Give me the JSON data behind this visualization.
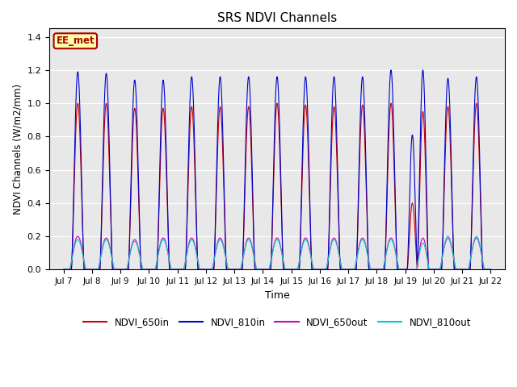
{
  "title": "SRS NDVI Channels",
  "xlabel": "Time",
  "ylabel": "NDVI Channels (W/m2/mm)",
  "ylim": [
    0,
    1.45
  ],
  "yticks": [
    0.0,
    0.2,
    0.4,
    0.6,
    0.8,
    1.0,
    1.2,
    1.4
  ],
  "x_tick_labels": [
    "Jul 7",
    "Jul 8",
    "Jul 9",
    "Jul 10",
    "Jul 11",
    "Jul 12",
    "Jul 13",
    "Jul 14",
    "Jul 15",
    "Jul 16",
    "Jul 17",
    "Jul 18",
    "Jul 19",
    "Jul 20",
    "Jul 21",
    "Jul 22"
  ],
  "num_days": 15,
  "peak_650in": [
    1.0,
    1.0,
    0.97,
    0.97,
    0.98,
    0.98,
    0.98,
    1.0,
    0.99,
    0.98,
    0.99,
    1.0,
    0.95,
    0.98,
    1.0
  ],
  "peak_810in": [
    1.19,
    1.18,
    1.14,
    1.14,
    1.16,
    1.16,
    1.16,
    1.16,
    1.16,
    1.16,
    1.16,
    1.2,
    1.13,
    1.15,
    1.16
  ],
  "peak_650out": [
    0.2,
    0.19,
    0.18,
    0.19,
    0.19,
    0.19,
    0.19,
    0.19,
    0.19,
    0.19,
    0.19,
    0.19,
    0.19,
    0.19,
    0.19
  ],
  "peak_810out": [
    0.18,
    0.18,
    0.17,
    0.18,
    0.18,
    0.18,
    0.18,
    0.18,
    0.18,
    0.18,
    0.18,
    0.18,
    0.16,
    0.2,
    0.2
  ],
  "special_day": 12,
  "special_810in_peak": 0.81,
  "special_810in_second": 1.2,
  "special_650in_peak": 0.4,
  "color_650in": "#cc0000",
  "color_810in": "#0000cc",
  "color_650out": "#cc00cc",
  "color_810out": "#00cccc",
  "bg_color": "#e8e8e8",
  "grid_color": "#ffffff",
  "legend_label_650in": "NDVI_650in",
  "legend_label_810in": "NDVI_810in",
  "legend_label_650out": "NDVI_650out",
  "legend_label_810out": "NDVI_810out",
  "ee_met_label": "EE_met",
  "ee_met_bg": "#ffffaa",
  "ee_met_border": "#aa0000",
  "ee_met_text_color": "#aa0000"
}
